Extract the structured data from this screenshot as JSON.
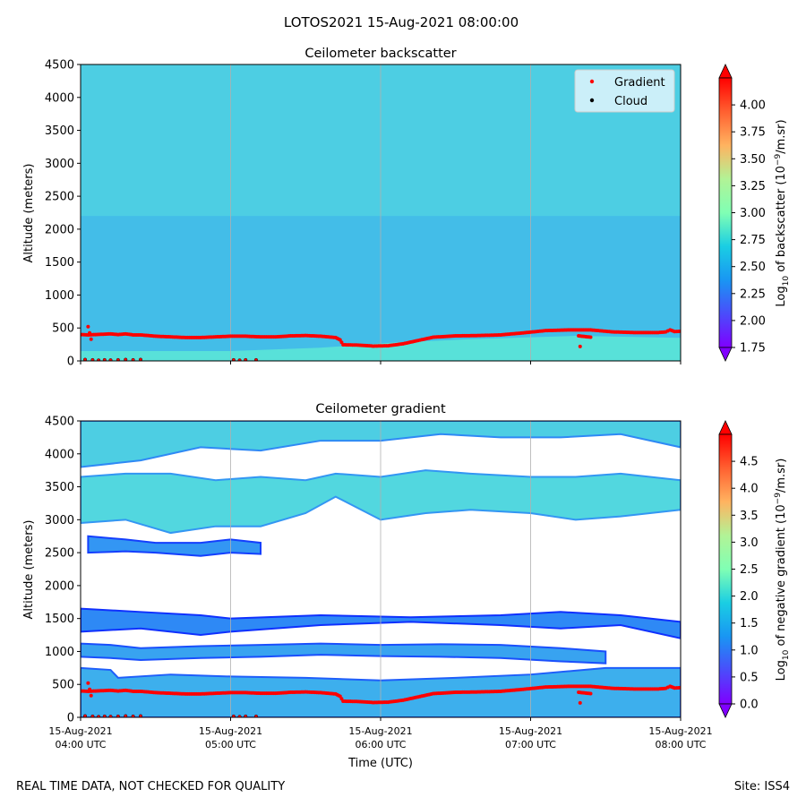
{
  "figure": {
    "suptitle": "LOTOS2021 15-Aug-2021 08:00:00",
    "footer_left": "REAL TIME DATA, NOT CHECKED FOR QUALITY",
    "footer_right": "Site: ISS4"
  },
  "chart_data": [
    {
      "type": "heatmap",
      "title": "Ceilometer backscatter",
      "ylabel": "Altitude (meters)",
      "xlabel": "",
      "ylim": [
        0,
        4500
      ],
      "yticks": [
        "0",
        "500",
        "1000",
        "1500",
        "2000",
        "2500",
        "3000",
        "3500",
        "4000",
        "4500"
      ],
      "xlim_hours_utc": [
        4,
        8
      ],
      "grid": "vertical at x ticks",
      "colormap": "rainbow",
      "colorbar": {
        "label_prefix": "Log",
        "label_sub": "10",
        "label_mid": " of backscatter (10",
        "label_sup": "−9",
        "label_suffix": "/m.sr)",
        "range": [
          1.75,
          4.25
        ],
        "ticks": [
          "1.75",
          "2.00",
          "2.25",
          "2.50",
          "2.75",
          "3.00",
          "3.25",
          "3.50",
          "3.75",
          "4.00"
        ]
      },
      "legend": {
        "position": "top-right",
        "entries": [
          {
            "label": "Gradient",
            "color": "#ff0000"
          },
          {
            "label": "Cloud",
            "color": "#000000"
          }
        ]
      },
      "field": {
        "upper_value": 2.5,
        "lower_value": 2.35,
        "surface_layer": [
          {
            "t": 4.0,
            "top": 150,
            "value": 2.55
          },
          {
            "t": 5.0,
            "top": 150,
            "value": 2.55
          },
          {
            "t": 5.6,
            "top": 200,
            "value": 2.65
          },
          {
            "t": 6.1,
            "top": 280,
            "value": 2.85
          },
          {
            "t": 6.6,
            "top": 330,
            "value": 2.8
          },
          {
            "t": 7.3,
            "top": 380,
            "value": 2.7
          },
          {
            "t": 8.0,
            "top": 350,
            "value": 2.6
          }
        ]
      },
      "gradient_points": [
        {
          "t": 4.0,
          "h": 400
        },
        {
          "t": 4.05,
          "h": 395
        },
        {
          "t": 4.1,
          "h": 400
        },
        {
          "t": 4.2,
          "h": 410
        },
        {
          "t": 4.25,
          "h": 400
        },
        {
          "t": 4.3,
          "h": 410
        },
        {
          "t": 4.35,
          "h": 395
        },
        {
          "t": 4.4,
          "h": 395
        },
        {
          "t": 4.45,
          "h": 385
        },
        {
          "t": 4.5,
          "h": 375
        },
        {
          "t": 4.6,
          "h": 365
        },
        {
          "t": 4.7,
          "h": 355
        },
        {
          "t": 4.8,
          "h": 355
        },
        {
          "t": 4.9,
          "h": 365
        },
        {
          "t": 5.0,
          "h": 375
        },
        {
          "t": 5.1,
          "h": 375
        },
        {
          "t": 5.2,
          "h": 365
        },
        {
          "t": 5.3,
          "h": 365
        },
        {
          "t": 5.4,
          "h": 380
        },
        {
          "t": 5.5,
          "h": 385
        },
        {
          "t": 5.6,
          "h": 375
        },
        {
          "t": 5.7,
          "h": 355
        },
        {
          "t": 5.73,
          "h": 320
        },
        {
          "t": 5.75,
          "h": 245
        },
        {
          "t": 5.85,
          "h": 240
        },
        {
          "t": 5.95,
          "h": 225
        },
        {
          "t": 6.05,
          "h": 230
        },
        {
          "t": 6.15,
          "h": 260
        },
        {
          "t": 6.25,
          "h": 310
        },
        {
          "t": 6.35,
          "h": 360
        },
        {
          "t": 6.5,
          "h": 380
        },
        {
          "t": 6.65,
          "h": 385
        },
        {
          "t": 6.8,
          "h": 395
        },
        {
          "t": 6.95,
          "h": 425
        },
        {
          "t": 7.1,
          "h": 460
        },
        {
          "t": 7.25,
          "h": 470
        },
        {
          "t": 7.4,
          "h": 470
        },
        {
          "t": 7.55,
          "h": 440
        },
        {
          "t": 7.7,
          "h": 430
        },
        {
          "t": 7.85,
          "h": 430
        },
        {
          "t": 7.9,
          "h": 440
        },
        {
          "t": 7.93,
          "h": 470
        },
        {
          "t": 7.96,
          "h": 445
        },
        {
          "t": 8.0,
          "h": 450
        },
        {
          "t": 4.05,
          "h": 520
        },
        {
          "t": 4.07,
          "h": 330
        },
        {
          "t": 7.32,
          "h": 380
        },
        {
          "t": 7.4,
          "h": 360
        },
        {
          "t": 7.33,
          "h": 220
        }
      ],
      "cloud_points": [
        {
          "t": 4.03,
          "h": 20
        },
        {
          "t": 4.08,
          "h": 15
        },
        {
          "t": 4.12,
          "h": 10
        },
        {
          "t": 4.16,
          "h": 15
        },
        {
          "t": 4.2,
          "h": 12
        },
        {
          "t": 4.25,
          "h": 15
        },
        {
          "t": 4.3,
          "h": 20
        },
        {
          "t": 4.35,
          "h": 15
        },
        {
          "t": 4.4,
          "h": 20
        },
        {
          "t": 5.02,
          "h": 15
        },
        {
          "t": 5.06,
          "h": 10
        },
        {
          "t": 5.1,
          "h": 15
        },
        {
          "t": 5.17,
          "h": 15
        }
      ]
    },
    {
      "type": "heatmap",
      "title": "Ceilometer gradient",
      "ylabel": "Altitude (meters)",
      "xlabel": "Time (UTC)",
      "ylim": [
        0,
        4500
      ],
      "yticks": [
        "0",
        "500",
        "1000",
        "1500",
        "2000",
        "2500",
        "3000",
        "3500",
        "4000",
        "4500"
      ],
      "xlim_hours_utc": [
        4,
        8
      ],
      "xticks": [
        {
          "t": 4,
          "line1": "15-Aug-2021",
          "line2": "04:00 UTC"
        },
        {
          "t": 5,
          "line1": "15-Aug-2021",
          "line2": "05:00 UTC"
        },
        {
          "t": 6,
          "line1": "15-Aug-2021",
          "line2": "06:00 UTC"
        },
        {
          "t": 7,
          "line1": "15-Aug-2021",
          "line2": "07:00 UTC"
        },
        {
          "t": 8,
          "line1": "15-Aug-2021",
          "line2": "08:00 UTC"
        }
      ],
      "grid": "vertical at x ticks",
      "colormap": "rainbow",
      "colorbar": {
        "label_prefix": "Log",
        "label_sub": "10",
        "label_mid": " of negative gradient (10",
        "label_sup": "−9",
        "label_suffix": "/m.sr)",
        "range": [
          0.0,
          5.0
        ],
        "ticks": [
          "0.0",
          "0.5",
          "1.0",
          "1.5",
          "2.0",
          "2.5",
          "3.0",
          "3.5",
          "4.0",
          "4.5"
        ]
      },
      "bands": [
        {
          "name": "surface",
          "value": 1.2,
          "shape": [
            [
              4.0,
              0,
              750
            ],
            [
              4.2,
              0,
              720
            ],
            [
              4.25,
              0,
              600
            ],
            [
              4.6,
              0,
              650
            ],
            [
              5.0,
              0,
              620
            ],
            [
              5.5,
              0,
              600
            ],
            [
              6.0,
              0,
              560
            ],
            [
              6.5,
              0,
              600
            ],
            [
              7.0,
              0,
              650
            ],
            [
              7.5,
              0,
              750
            ],
            [
              8.0,
              0,
              750
            ]
          ]
        },
        {
          "name": "lower-layer",
          "value": 1.1,
          "shape": [
            [
              4.0,
              920,
              1120
            ],
            [
              4.2,
              900,
              1100
            ],
            [
              4.4,
              870,
              1050
            ],
            [
              4.8,
              900,
              1080
            ],
            [
              5.2,
              920,
              1100
            ],
            [
              5.6,
              950,
              1120
            ],
            [
              6.0,
              930,
              1100
            ],
            [
              6.4,
              920,
              1110
            ],
            [
              6.8,
              900,
              1100
            ],
            [
              7.2,
              850,
              1050
            ],
            [
              7.5,
              820,
              1000
            ]
          ]
        },
        {
          "name": "layer-1500",
          "value": 0.9,
          "shape": [
            [
              4.0,
              1300,
              1650
            ],
            [
              4.4,
              1350,
              1600
            ],
            [
              4.8,
              1250,
              1550
            ],
            [
              5.0,
              1300,
              1500
            ],
            [
              5.6,
              1400,
              1550
            ],
            [
              6.2,
              1450,
              1520
            ],
            [
              6.8,
              1400,
              1550
            ],
            [
              7.2,
              1350,
              1600
            ],
            [
              7.6,
              1400,
              1550
            ],
            [
              8.0,
              1200,
              1450
            ]
          ]
        },
        {
          "name": "layer-2600",
          "value": 1.0,
          "shape": [
            [
              4.05,
              2500,
              2750
            ],
            [
              4.3,
              2520,
              2700
            ],
            [
              4.5,
              2500,
              2650
            ],
            [
              4.8,
              2450,
              2650
            ],
            [
              5.0,
              2500,
              2700
            ],
            [
              5.2,
              2480,
              2650
            ]
          ]
        },
        {
          "name": "mid-cloud",
          "value": 1.6,
          "shape": [
            [
              4.0,
              2950,
              3650
            ],
            [
              4.3,
              3000,
              3700
            ],
            [
              4.6,
              2800,
              3700
            ],
            [
              4.9,
              2900,
              3600
            ],
            [
              5.2,
              2900,
              3650
            ],
            [
              5.5,
              3100,
              3600
            ],
            [
              5.7,
              3350,
              3700
            ],
            [
              6.0,
              3000,
              3650
            ],
            [
              6.3,
              3100,
              3750
            ],
            [
              6.6,
              3150,
              3700
            ],
            [
              7.0,
              3100,
              3650
            ],
            [
              7.3,
              3000,
              3650
            ],
            [
              7.6,
              3050,
              3700
            ],
            [
              8.0,
              3150,
              3600
            ]
          ]
        },
        {
          "name": "upper-cloud",
          "value": 1.5,
          "shape": [
            [
              4.0,
              3800,
              4500
            ],
            [
              4.4,
              3900,
              4500
            ],
            [
              4.8,
              4100,
              4500
            ],
            [
              5.2,
              4050,
              4500
            ],
            [
              5.6,
              4200,
              4500
            ],
            [
              6.0,
              4200,
              4500
            ],
            [
              6.4,
              4300,
              4500
            ],
            [
              6.8,
              4250,
              4500
            ],
            [
              7.2,
              4250,
              4500
            ],
            [
              7.6,
              4300,
              4500
            ],
            [
              8.0,
              4100,
              4500
            ]
          ]
        }
      ],
      "gradient_points_ref": "same as backscatter panel",
      "cloud_points_ref": "same as backscatter panel"
    }
  ]
}
